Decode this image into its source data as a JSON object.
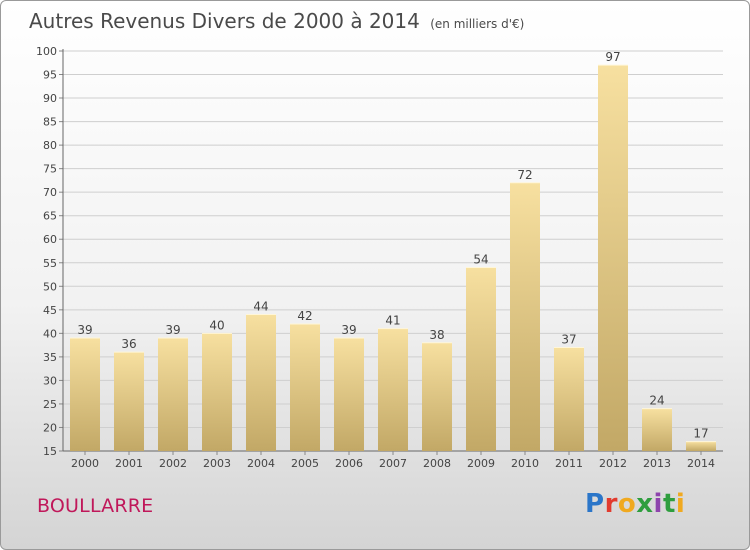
{
  "title": "Autres Revenus Divers de 2000 à 2014",
  "subtitle": "(en milliers d'€)",
  "commune": "BOULLARRE",
  "logo": {
    "text": "Proxiti",
    "letters": [
      "P",
      "r",
      "o",
      "x",
      "i",
      "t",
      "i"
    ]
  },
  "colors": {
    "bar_light": "#f7e0a0",
    "bar_dark": "#c2a866",
    "commune_text": "#c0185a",
    "grid": "#cfcfcf"
  },
  "chart_data": {
    "type": "bar",
    "categories": [
      "2000",
      "2001",
      "2002",
      "2003",
      "2004",
      "2005",
      "2006",
      "2007",
      "2008",
      "2009",
      "2010",
      "2011",
      "2012",
      "2013",
      "2014"
    ],
    "values": [
      39,
      36,
      39,
      40,
      44,
      42,
      39,
      41,
      38,
      54,
      72,
      37,
      97,
      24,
      17
    ],
    "ylim": [
      15,
      100
    ],
    "yticks": [
      15,
      20,
      25,
      30,
      35,
      40,
      45,
      50,
      55,
      60,
      65,
      70,
      75,
      80,
      85,
      90,
      95,
      100
    ],
    "grid": true,
    "data_labels": true
  }
}
